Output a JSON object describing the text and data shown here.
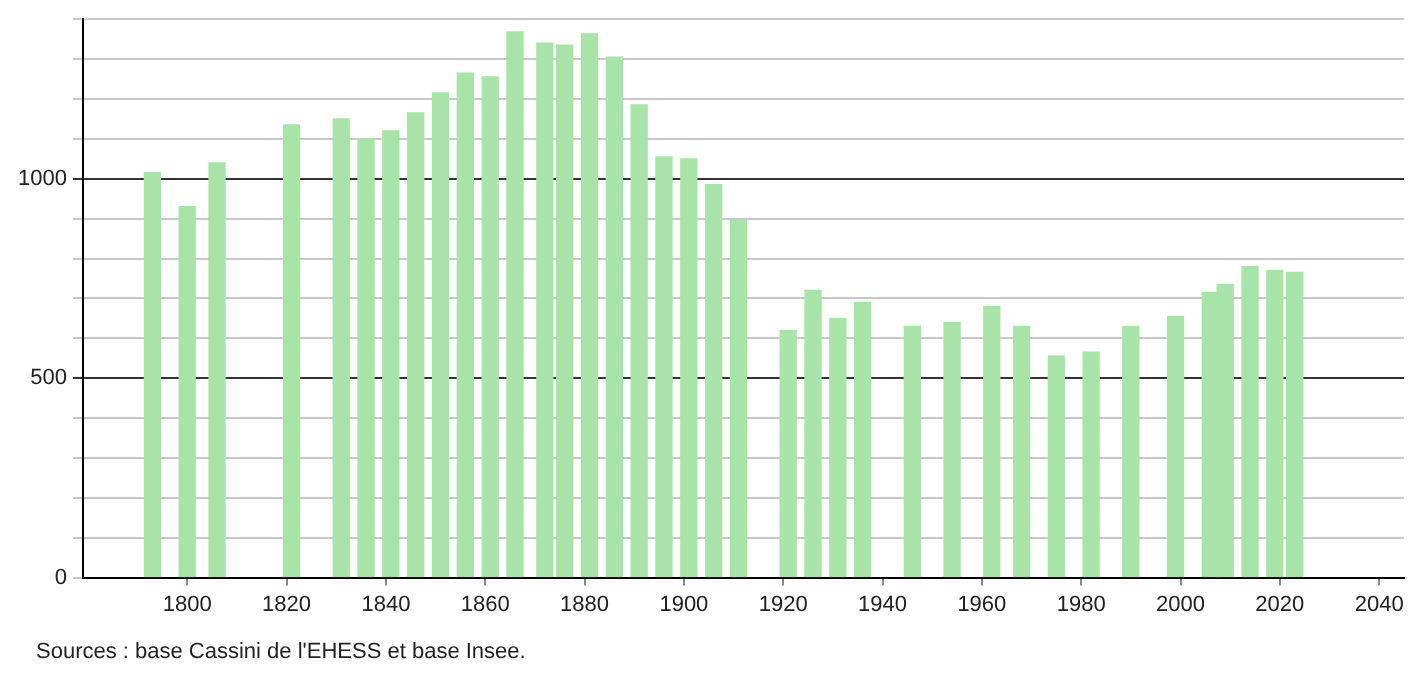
{
  "chart_data": {
    "type": "bar",
    "x": [
      1793,
      1800,
      1806,
      1821,
      1831,
      1836,
      1841,
      1846,
      1851,
      1856,
      1861,
      1866,
      1872,
      1876,
      1881,
      1886,
      1891,
      1896,
      1901,
      1906,
      1911,
      1921,
      1926,
      1931,
      1936,
      1946,
      1954,
      1962,
      1968,
      1975,
      1982,
      1990,
      1999,
      2006,
      2009,
      2014,
      2019,
      2023
    ],
    "values": [
      1015,
      930,
      1040,
      1135,
      1150,
      1100,
      1120,
      1165,
      1215,
      1265,
      1255,
      1368,
      1340,
      1335,
      1363,
      1305,
      1185,
      1055,
      1050,
      985,
      895,
      620,
      720,
      650,
      690,
      630,
      640,
      680,
      630,
      555,
      565,
      630,
      655,
      715,
      735,
      780,
      770,
      765
    ],
    "color": "#a8e4a8",
    "xlim": [
      1779,
      2045
    ],
    "xticks": [
      1800,
      1820,
      1840,
      1860,
      1880,
      1900,
      1920,
      1940,
      1960,
      1980,
      2000,
      2020,
      2040
    ],
    "ylim": [
      0,
      1400
    ],
    "yticks": [
      0,
      {
        "value": 100,
        "label": null
      },
      {
        "value": 200,
        "label": null
      },
      {
        "value": 300,
        "label": null
      },
      {
        "value": 400,
        "label": null
      },
      500,
      {
        "value": 600,
        "label": null
      },
      {
        "value": 700,
        "label": null
      },
      {
        "value": 800,
        "label": null
      },
      {
        "value": 900,
        "label": null
      },
      1000,
      {
        "value": 1100,
        "label": null
      },
      {
        "value": 1200,
        "label": null
      },
      {
        "value": 1300,
        "label": null
      },
      {
        "value": 1400,
        "label": null
      }
    ],
    "grid": "y",
    "legend": false,
    "annotations": [
      "Sources : base Cassini de l'EHESS et base Insee."
    ]
  }
}
